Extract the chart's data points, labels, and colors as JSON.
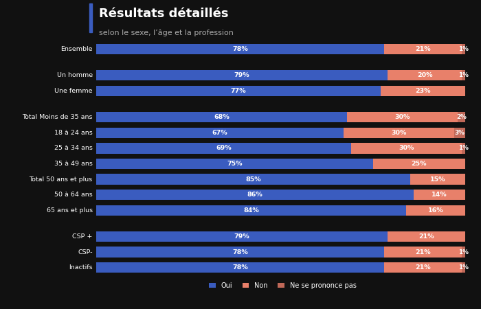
{
  "title": "Résultats détaillés",
  "subtitle": "selon le sexe, l’âge et la profession",
  "background_color": "#111111",
  "text_color": "#ffffff",
  "bar_color_oui": "#3a5cbf",
  "bar_color_non": "#e8806a",
  "bar_color_nsp": "#c06858",
  "categories": [
    "Ensemble",
    "Un homme",
    "Une femme",
    "Total Moins de 35 ans",
    "18 à 24 ans",
    "25 à 34 ans",
    "35 à 49 ans",
    "Total 50 ans et plus",
    "50 à 64 ans",
    "65 ans et plus",
    "CSP +",
    "CSP-",
    "Inactifs"
  ],
  "oui": [
    78,
    79,
    77,
    68,
    67,
    69,
    75,
    85,
    86,
    84,
    79,
    78,
    78
  ],
  "non": [
    21,
    20,
    23,
    30,
    30,
    30,
    25,
    15,
    14,
    16,
    21,
    21,
    21
  ],
  "nsp": [
    1,
    1,
    0,
    2,
    3,
    1,
    0,
    0,
    0,
    0,
    0,
    1,
    1
  ],
  "group_breaks_after": [
    0,
    2,
    9
  ],
  "legend_labels": [
    "Oui",
    "Non",
    "Ne se prononce pas"
  ],
  "figsize": [
    7.0,
    4.5
  ],
  "dpi": 100
}
